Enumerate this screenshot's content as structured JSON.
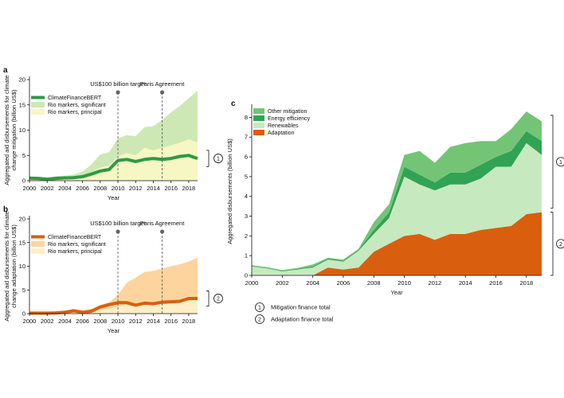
{
  "chart_data": [
    {
      "panel": "a",
      "type": "area",
      "xlabel": "Year",
      "ylabel_lines": [
        "Aggregated aid disbursements for climate",
        "change mitigation (billion US$)"
      ],
      "xlim": [
        2000,
        2019
      ],
      "ylim": [
        0,
        20
      ],
      "x_ticks": [
        2000,
        2002,
        2004,
        2006,
        2008,
        2010,
        2012,
        2014,
        2016,
        2018
      ],
      "y_ticks": [
        0,
        5,
        10,
        15,
        20
      ],
      "x": [
        2000,
        2001,
        2002,
        2003,
        2004,
        2005,
        2006,
        2007,
        2008,
        2009,
        2010,
        2011,
        2012,
        2013,
        2014,
        2015,
        2016,
        2017,
        2018,
        2019
      ],
      "legend": [
        {
          "label": "ClimateFinanceBERT",
          "color": "#2e9a46"
        },
        {
          "label": "Rio markers, significant",
          "color": "#cde8b4"
        },
        {
          "label": "Rio markers, principal",
          "color": "#f7f7c4"
        }
      ],
      "series": [
        {
          "name": "Rio markers, significant",
          "values": [
            0.3,
            0.4,
            0.5,
            0.9,
            1.0,
            1.2,
            1.8,
            3.2,
            5.2,
            5.6,
            8.4,
            9.0,
            8.8,
            10.6,
            10.8,
            12.0,
            13.5,
            14.8,
            16.3,
            17.8
          ]
        },
        {
          "name": "Rio markers, principal",
          "values": [
            0.2,
            0.3,
            0.4,
            0.6,
            0.7,
            0.8,
            1.0,
            1.6,
            2.6,
            3.0,
            4.8,
            5.5,
            5.0,
            6.5,
            6.0,
            6.5,
            7.0,
            7.5,
            8.2,
            7.6
          ]
        },
        {
          "name": "ClimateFinanceBERT",
          "values": [
            0.5,
            0.45,
            0.3,
            0.45,
            0.55,
            0.6,
            0.8,
            1.3,
            1.9,
            2.2,
            4.0,
            4.2,
            3.8,
            4.2,
            4.4,
            4.2,
            4.4,
            4.8,
            5.0,
            4.4
          ]
        }
      ],
      "annotations": [
        {
          "label": "US$100 billion target",
          "x": 2010
        },
        {
          "label": "Paris Agreement",
          "x": 2015
        }
      ],
      "bracket_label": "1"
    },
    {
      "panel": "b",
      "type": "area",
      "xlabel": "Year",
      "ylabel_lines": [
        "Aggregated aid disbursements for climate",
        "change adaptation (billion US$)"
      ],
      "xlim": [
        2000,
        2019
      ],
      "ylim": [
        0,
        20
      ],
      "x_ticks": [
        2000,
        2002,
        2004,
        2006,
        2008,
        2010,
        2012,
        2014,
        2016,
        2018
      ],
      "y_ticks": [
        0,
        5,
        10,
        15,
        20
      ],
      "x": [
        2000,
        2001,
        2002,
        2003,
        2004,
        2005,
        2006,
        2007,
        2008,
        2009,
        2010,
        2011,
        2012,
        2013,
        2014,
        2015,
        2016,
        2017,
        2018,
        2019
      ],
      "legend": [
        {
          "label": "ClimateFinanceBERT",
          "color": "#d95f0e"
        },
        {
          "label": "Rio markers, significant",
          "color": "#fdd49e"
        },
        {
          "label": "Rio markers, principal",
          "color": "#feefc8"
        }
      ],
      "series": [
        {
          "name": "Rio markers, significant",
          "values": [
            0.1,
            0.1,
            0.2,
            0.2,
            0.3,
            0.4,
            0.6,
            1.0,
            1.8,
            2.4,
            4.0,
            6.5,
            7.6,
            8.8,
            9.0,
            9.5,
            10.0,
            10.4,
            11.0,
            11.8
          ]
        },
        {
          "name": "Rio markers, principal",
          "values": [
            0.05,
            0.05,
            0.1,
            0.1,
            0.15,
            0.2,
            0.3,
            0.5,
            0.8,
            1.0,
            1.5,
            2.0,
            2.2,
            2.4,
            2.4,
            2.6,
            2.8,
            3.0,
            3.2,
            3.4
          ]
        },
        {
          "name": "ClimateFinanceBERT",
          "values": [
            0.1,
            0.1,
            0.1,
            0.15,
            0.3,
            0.6,
            0.3,
            0.5,
            1.4,
            1.9,
            2.3,
            2.3,
            1.8,
            2.2,
            2.1,
            2.4,
            2.5,
            2.6,
            3.2,
            3.2
          ]
        }
      ],
      "annotations": [
        {
          "label": "US$100 billion target",
          "x": 2010
        },
        {
          "label": "Paris Agreement",
          "x": 2015
        }
      ],
      "bracket_label": "2"
    },
    {
      "panel": "c",
      "type": "area",
      "stacked": true,
      "xlabel": "Year",
      "ylabel": "Aggregated disbursements (billion US$)",
      "xlim": [
        2000,
        2019
      ],
      "ylim": [
        0,
        8.5
      ],
      "x_ticks": [
        2000,
        2002,
        2004,
        2006,
        2008,
        2010,
        2012,
        2014,
        2016,
        2018
      ],
      "y_ticks": [
        0,
        1,
        2,
        3,
        4,
        5,
        6,
        7,
        8
      ],
      "x": [
        2000,
        2001,
        2002,
        2003,
        2004,
        2005,
        2006,
        2007,
        2008,
        2009,
        2010,
        2011,
        2012,
        2013,
        2014,
        2015,
        2016,
        2017,
        2018,
        2019
      ],
      "legend": [
        {
          "label": "Other mitigation",
          "color": "#74c476"
        },
        {
          "label": "Energy efficiency",
          "color": "#31a354"
        },
        {
          "label": "Renewables",
          "color": "#c7e9c0"
        },
        {
          "label": "Adaptation",
          "color": "#d95f0e"
        }
      ],
      "series": [
        {
          "name": "Adaptation",
          "values": [
            0.0,
            0.0,
            0.0,
            0.0,
            0.0,
            0.4,
            0.3,
            0.4,
            1.2,
            1.6,
            2.0,
            2.1,
            1.8,
            2.1,
            2.1,
            2.3,
            2.4,
            2.5,
            3.1,
            3.2
          ]
        },
        {
          "name": "Renewables",
          "values": [
            0.45,
            0.35,
            0.2,
            0.3,
            0.4,
            0.4,
            0.4,
            0.85,
            0.9,
            1.3,
            3.0,
            2.5,
            2.5,
            2.5,
            2.5,
            2.6,
            3.1,
            3.0,
            3.6,
            2.9
          ]
        },
        {
          "name": "Energy efficiency",
          "values": [
            0.02,
            0.02,
            0.02,
            0.03,
            0.05,
            0.05,
            0.05,
            0.05,
            0.2,
            0.3,
            0.5,
            0.5,
            0.4,
            0.6,
            0.6,
            0.7,
            0.5,
            0.8,
            0.6,
            0.7
          ]
        },
        {
          "name": "Other mitigation",
          "values": [
            0.05,
            0.05,
            0.05,
            0.05,
            0.1,
            0.05,
            0.05,
            0.05,
            0.4,
            0.4,
            0.6,
            1.2,
            1.0,
            1.3,
            1.5,
            1.2,
            0.8,
            1.1,
            1.0,
            1.0
          ]
        }
      ],
      "notes": [
        {
          "id": "1",
          "label": "Mitigation finance total"
        },
        {
          "id": "2",
          "label": "Adaptation finance total"
        }
      ]
    }
  ]
}
